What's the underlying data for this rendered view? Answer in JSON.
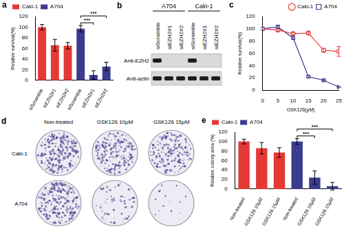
{
  "chart_data": [
    {
      "panel": "a",
      "type": "bar",
      "categories": [
        "siScramble",
        "siEZH2#1",
        "siEZH2#2",
        "siScramble",
        "siEZH2#1",
        "siEZH2#2"
      ],
      "series": [
        {
          "name": "Caki-1",
          "color": "#e53935",
          "values": [
            100,
            66,
            65,
            null,
            null,
            null
          ],
          "errors": [
            5,
            11,
            6,
            null,
            null,
            null
          ]
        },
        {
          "name": "A704",
          "color": "#3b3b8f",
          "values": [
            null,
            null,
            null,
            97,
            10,
            26
          ],
          "errors": [
            null,
            null,
            null,
            6,
            8,
            8
          ]
        }
      ],
      "ylabel": "Relative survival(%)",
      "ylim": [
        0,
        120
      ],
      "yticks": [
        0,
        20,
        40,
        60,
        80,
        100,
        120
      ],
      "grid": false,
      "legend": "top-left",
      "significance": [
        {
          "text": "***",
          "between": [
            3,
            4
          ]
        },
        {
          "text": "***",
          "between": [
            3,
            5
          ]
        }
      ]
    },
    {
      "panel": "c",
      "type": "line",
      "x": [
        0,
        5,
        10,
        15,
        20,
        25
      ],
      "series": [
        {
          "name": "Caki-1",
          "color": "#e53935",
          "marker": "circle",
          "values": [
            100,
            98,
            92,
            93,
            65,
            63
          ],
          "errors": [
            0,
            2,
            2,
            2,
            3,
            8
          ]
        },
        {
          "name": "A704",
          "color": "#3b3b8f",
          "marker": "square",
          "values": [
            100,
            103,
            85,
            22,
            16,
            5
          ],
          "errors": [
            2,
            3,
            2,
            2,
            1,
            1
          ]
        }
      ],
      "xlabel": "GSK126(μM)",
      "ylabel": "Relative survival(%)",
      "xlim": [
        0,
        25
      ],
      "xticks": [
        0,
        5,
        10,
        15,
        20,
        25
      ],
      "ylim": [
        0,
        120
      ],
      "yticks": [
        0,
        20,
        40,
        60,
        80,
        100,
        120
      ],
      "grid": false,
      "legend": "top-right"
    },
    {
      "panel": "e",
      "type": "bar",
      "categories": [
        "Non-treated",
        "GSK126 10μM",
        "GSK126 15μM",
        "Non-treated",
        "GSK126 10μM",
        "GSK126 15μM"
      ],
      "series": [
        {
          "name": "Caki-1",
          "color": "#e53935",
          "values": [
            100,
            86,
            77,
            null,
            null,
            null
          ],
          "errors": [
            5,
            12,
            10,
            null,
            null,
            null
          ]
        },
        {
          "name": "A704",
          "color": "#3b3b8f",
          "values": [
            null,
            null,
            null,
            100,
            24,
            6
          ],
          "errors": [
            null,
            null,
            null,
            6,
            14,
            8
          ]
        }
      ],
      "ylabel": "Relative colony area (%)",
      "ylim": [
        0,
        120
      ],
      "yticks": [
        0,
        20,
        40,
        60,
        80,
        100,
        120
      ],
      "grid": false,
      "legend": "top-left",
      "significance": [
        {
          "text": "***",
          "between": [
            3,
            4
          ]
        },
        {
          "text": "***",
          "between": [
            3,
            5
          ]
        }
      ]
    }
  ],
  "blot": {
    "panel": "b",
    "groups": [
      {
        "label": "A704",
        "lanes": [
          "siScramble",
          "siEZH2#1",
          "siEZH2#2"
        ]
      },
      {
        "label": "Caki-1",
        "lanes": [
          "siScramble",
          "siEZH2#1",
          "siEZH2#2"
        ]
      }
    ],
    "rows": [
      {
        "label": "Anti-EZH2",
        "bands": [
          true,
          false,
          false,
          true,
          false,
          false
        ]
      },
      {
        "label": "Anti-actin",
        "bands": [
          true,
          true,
          true,
          true,
          true,
          true
        ]
      }
    ]
  },
  "colonies": {
    "panel": "d",
    "rows": [
      "Caki-1",
      "A704"
    ],
    "columns": [
      "Non-treated",
      "GSK126 10μM",
      "GSK126 15μM"
    ]
  }
}
